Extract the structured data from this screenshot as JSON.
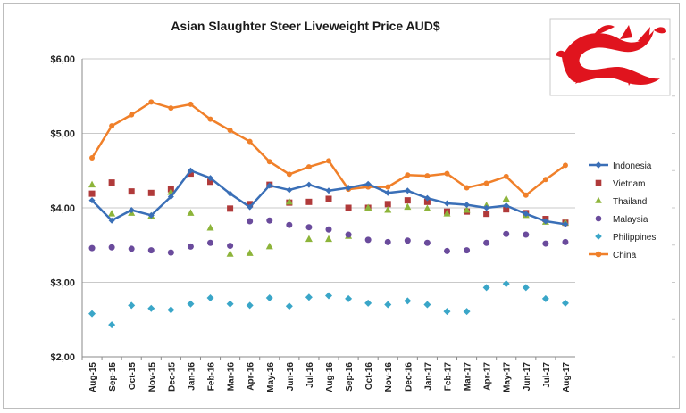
{
  "chart_data": {
    "type": "line",
    "title": "Asian Slaughter Steer Liveweight Price AUD$",
    "xlabel": "",
    "ylabel": "",
    "ylim": [
      2,
      6
    ],
    "yticks": [
      "$2,00",
      "$3,00",
      "$4,00",
      "$5,00",
      "$6,00"
    ],
    "categories": [
      "Aug-15",
      "Sep-15",
      "Oct-15",
      "Nov-15",
      "Dec-15",
      "Jan-16",
      "Feb-16",
      "Mar-16",
      "Apr-16",
      "May-16",
      "Jun-16",
      "Jul-16",
      "Aug-16",
      "Sep-16",
      "Oct-16",
      "Nov-16",
      "Dec-16",
      "Jan-17",
      "Feb-17",
      "Mar-17",
      "Apr-17",
      "May-17",
      "Jun-17",
      "Jul-17",
      "Aug-17"
    ],
    "grid": true,
    "legend_position": "right",
    "series": [
      {
        "name": "Indonesia",
        "style": "line-marker",
        "marker": "diamond",
        "color": "#3a6fb7",
        "values": [
          4.1,
          3.83,
          3.97,
          3.9,
          4.15,
          4.5,
          4.4,
          4.19,
          4.01,
          4.3,
          4.24,
          4.31,
          4.23,
          4.27,
          4.32,
          4.2,
          4.23,
          4.13,
          4.06,
          4.04,
          4.0,
          4.03,
          3.92,
          3.82,
          3.78
        ]
      },
      {
        "name": "Vietnam",
        "style": "marker",
        "marker": "square",
        "color": "#b03a3a",
        "values": [
          4.19,
          4.34,
          4.22,
          4.2,
          4.25,
          4.46,
          4.35,
          3.99,
          4.05,
          4.31,
          4.07,
          4.08,
          4.12,
          4.0,
          4.0,
          4.05,
          4.1,
          4.08,
          3.95,
          3.95,
          3.92,
          3.98,
          3.93,
          3.85,
          3.8
        ]
      },
      {
        "name": "Thailand",
        "style": "marker",
        "marker": "triangle",
        "color": "#8db43a",
        "values": [
          4.31,
          3.92,
          3.93,
          3.89,
          4.21,
          3.93,
          3.73,
          3.38,
          3.39,
          3.48,
          4.08,
          3.58,
          3.58,
          3.62,
          4.0,
          3.97,
          4.01,
          3.99,
          3.92,
          3.97,
          4.03,
          4.12,
          3.9,
          3.81,
          3.8
        ]
      },
      {
        "name": "Malaysia",
        "style": "marker",
        "marker": "circle",
        "color": "#6a4b9c",
        "values": [
          3.46,
          3.47,
          3.45,
          3.43,
          3.4,
          3.48,
          3.53,
          3.49,
          3.82,
          3.83,
          3.77,
          3.74,
          3.71,
          3.64,
          3.57,
          3.54,
          3.56,
          3.53,
          3.42,
          3.43,
          3.53,
          3.65,
          3.64,
          3.52,
          3.54
        ]
      },
      {
        "name": "Philippines",
        "style": "marker",
        "marker": "diamond",
        "color": "#3aa6c8",
        "values": [
          2.58,
          2.43,
          2.69,
          2.65,
          2.63,
          2.71,
          2.79,
          2.71,
          2.69,
          2.79,
          2.68,
          2.8,
          2.82,
          2.78,
          2.72,
          2.7,
          2.75,
          2.7,
          2.61,
          2.61,
          2.93,
          2.98,
          2.93,
          2.78,
          2.72
        ]
      },
      {
        "name": "China",
        "style": "line-marker",
        "marker": "circle",
        "color": "#f0802a",
        "values": [
          4.67,
          5.1,
          5.25,
          5.42,
          5.34,
          5.39,
          5.19,
          5.04,
          4.89,
          4.62,
          4.45,
          4.55,
          4.63,
          4.25,
          4.28,
          4.28,
          4.44,
          4.43,
          4.46,
          4.27,
          4.33,
          4.42,
          4.17,
          4.38,
          4.57
        ]
      }
    ]
  },
  "logo": {
    "icon": "red-chinese-dragon-icon",
    "color": "#e0141e"
  }
}
